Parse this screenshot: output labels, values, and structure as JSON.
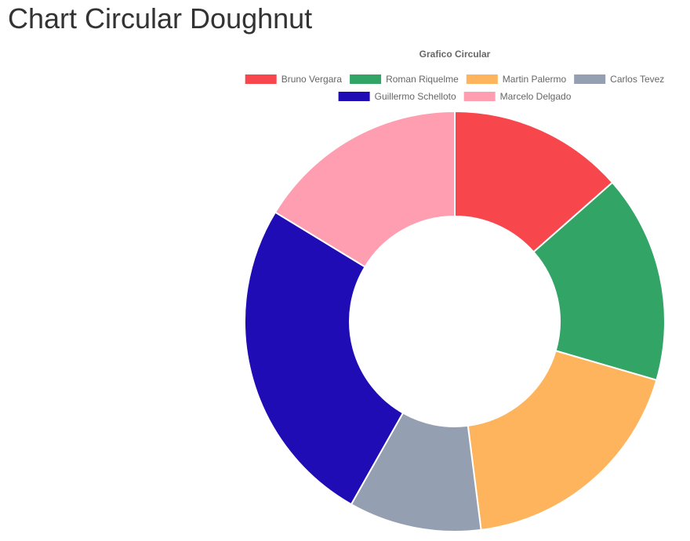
{
  "page": {
    "title": "Chart Circular Doughnut"
  },
  "chart_data": {
    "type": "doughnut",
    "title": "Grafico Circular",
    "legend_position": "top",
    "categories": [
      "Bruno Vergara",
      "Roman Riquelme",
      "Martin Palermo",
      "Carlos Tevez",
      "Guillermo Schelloto",
      "Marcelo Delgado"
    ],
    "values": [
      13.5,
      16.0,
      18.5,
      10.2,
      25.5,
      16.3
    ],
    "colors": [
      "#f7474d",
      "#32a466",
      "#fdb45c",
      "#949fb1",
      "#200cb4",
      "#fe9eb0"
    ]
  }
}
